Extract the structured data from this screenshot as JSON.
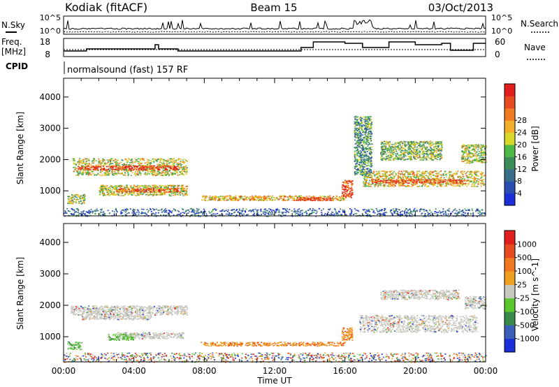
{
  "header": {
    "station": "Kodiak (fitACF)",
    "beam": "Beam 15",
    "date": "03/Oct/2013"
  },
  "mini_panels": {
    "nsky_label": "N.Sky",
    "nsearch_label": "N.Search",
    "power_top_tick": "10^5",
    "power_bottom_tick": "10^0",
    "freq_label": "Freq.",
    "freq_unit": "[MHz]",
    "freq_ticks": [
      "18",
      "8"
    ],
    "nave_label": "Nave",
    "nave_ticks": [
      "60",
      "0"
    ],
    "cpid_label": "CPID",
    "cpid_text": "normalsound (fast) 157 RF"
  },
  "colors": {
    "velocity_ground_scatter": "#c8c8c0",
    "frequency_line": "#000000"
  },
  "chart_data": [
    {
      "type": "heatmap",
      "parameter": "Power",
      "ylabel": "Slant Range [km]",
      "yticks": [
        1000,
        2000,
        3000,
        4000
      ],
      "ylim": [
        200,
        4600
      ],
      "xlim": [
        0,
        24
      ],
      "colorbar": {
        "label": "Power [dB]",
        "ticks": [
          "4",
          "8",
          "12",
          "16",
          "20",
          "24",
          "28"
        ],
        "colors": [
          "#1a2fd8",
          "#2b4fb0",
          "#3b6e8a",
          "#3e8e5a",
          "#50b848",
          "#d8d82a",
          "#f2b02a",
          "#f07a22",
          "#e84a20",
          "#e01e1e"
        ]
      },
      "echo_regions": [
        {
          "t": [
            0.5,
            7.0
          ],
          "r": [
            1500,
            2050
          ],
          "level": 0.55
        },
        {
          "t": [
            0.8,
            6.5
          ],
          "r": [
            1680,
            1820
          ],
          "level": 0.9
        },
        {
          "t": [
            2.0,
            7.0
          ],
          "r": [
            860,
            1200
          ],
          "level": 0.55
        },
        {
          "t": [
            3.0,
            6.5
          ],
          "r": [
            980,
            1100
          ],
          "level": 0.85
        },
        {
          "t": [
            0.2,
            1.2
          ],
          "r": [
            600,
            900
          ],
          "level": 0.5
        },
        {
          "t": [
            7.8,
            16.0
          ],
          "r": [
            700,
            860
          ],
          "level": 0.65
        },
        {
          "t": [
            13.2,
            15.2
          ],
          "r": [
            700,
            800
          ],
          "level": 0.9
        },
        {
          "t": [
            15.8,
            16.4
          ],
          "r": [
            800,
            1350
          ],
          "level": 0.85
        },
        {
          "t": [
            17.0,
            23.9
          ],
          "r": [
            1150,
            1650
          ],
          "level": 0.6
        },
        {
          "t": [
            17.5,
            22.8
          ],
          "r": [
            1250,
            1380
          ],
          "level": 0.85
        },
        {
          "t": [
            18.0,
            21.5
          ],
          "r": [
            2000,
            2600
          ],
          "level": 0.45
        },
        {
          "t": [
            22.6,
            24.0
          ],
          "r": [
            1900,
            2500
          ],
          "level": 0.5
        },
        {
          "t": [
            16.5,
            17.5
          ],
          "r": [
            1500,
            3400
          ],
          "level": 0.35
        },
        {
          "t": [
            0.0,
            24.0
          ],
          "r": [
            200,
            450
          ],
          "level": 0.2
        }
      ]
    },
    {
      "type": "heatmap",
      "parameter": "Velocity",
      "ylabel": "Slant Range [km]",
      "yticks": [
        1000,
        2000,
        3000,
        4000
      ],
      "ylim": [
        200,
        4600
      ],
      "xlim": [
        0,
        24
      ],
      "xticks": [
        "00:00",
        "04:00",
        "08:00",
        "12:00",
        "16:00",
        "20:00",
        "00:00"
      ],
      "xlabel": "Time UT",
      "colorbar": {
        "label": "Velocity [m s^-1]",
        "ticks": [
          "1000",
          "500",
          "100",
          "25",
          "-25",
          "-100",
          "-500",
          "-1000"
        ],
        "colors": [
          "#1a2fd8",
          "#3a5fb8",
          "#3a8a4a",
          "#5cc830",
          "#c8c8c0",
          "#f0a020",
          "#f07820",
          "#e84a20",
          "#e01e1e"
        ]
      },
      "echo_regions": [
        {
          "t": [
            0.4,
            7.0
          ],
          "r": [
            1700,
            2000
          ],
          "kind": "ground"
        },
        {
          "t": [
            1.0,
            5.0
          ],
          "r": [
            1550,
            1700
          ],
          "kind": "ground"
        },
        {
          "t": [
            3.0,
            6.8
          ],
          "r": [
            950,
            1150
          ],
          "kind": "ground"
        },
        {
          "t": [
            2.5,
            4.0
          ],
          "r": [
            900,
            1100
          ],
          "kind": "toward"
        },
        {
          "t": [
            0.2,
            1.0
          ],
          "r": [
            600,
            850
          ],
          "kind": "toward"
        },
        {
          "t": [
            7.8,
            16.0
          ],
          "r": [
            720,
            840
          ],
          "kind": "away"
        },
        {
          "t": [
            16.8,
            23.5
          ],
          "r": [
            1150,
            1700
          ],
          "kind": "ground"
        },
        {
          "t": [
            18.0,
            22.5
          ],
          "r": [
            2200,
            2500
          ],
          "kind": "ground"
        },
        {
          "t": [
            15.8,
            16.4
          ],
          "r": [
            900,
            1300
          ],
          "kind": "away"
        },
        {
          "t": [
            22.8,
            24.0
          ],
          "r": [
            1900,
            2300
          ],
          "kind": "ground"
        },
        {
          "t": [
            0.0,
            24.0
          ],
          "r": [
            200,
            500
          ],
          "kind": "mixed"
        }
      ]
    }
  ]
}
